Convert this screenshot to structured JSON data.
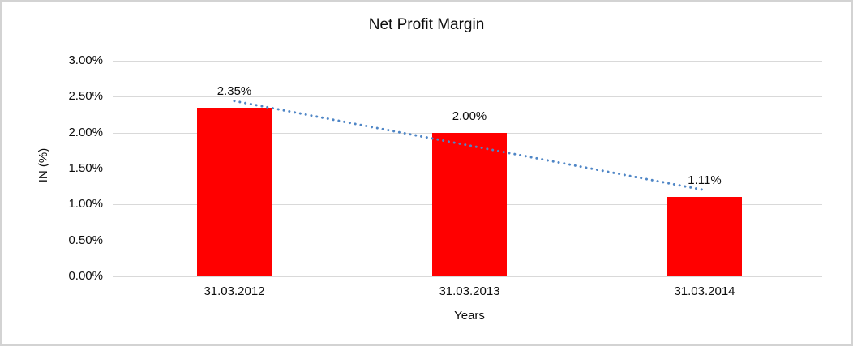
{
  "page": {
    "background_color": "#ffffff",
    "border_color": "#d3d3d3"
  },
  "chart_data": {
    "type": "bar",
    "title": "Net Profit Margin",
    "categories": [
      "31.03.2012",
      "31.03.2013",
      "31.03.2014"
    ],
    "values": [
      2.35,
      2.0,
      1.11
    ],
    "data_labels": [
      "2.35%",
      "2.00%",
      "1.11%"
    ],
    "xlabel": "Years",
    "ylabel": "IN (%)",
    "ylim": [
      0,
      3
    ],
    "ytick_step": 0.5,
    "ytick_labels": [
      "0.00%",
      "0.50%",
      "1.00%",
      "1.50%",
      "2.00%",
      "2.50%",
      "3.00%"
    ],
    "grid": true,
    "legend": "none",
    "bar_color": "#ff0000",
    "gridline_color": "#d9d9d9",
    "text_color": "#0d0d0d",
    "trendline": {
      "type": "linear",
      "style": "dotted",
      "color": "#4f86c6",
      "start_value": 2.44,
      "end_value": 1.2
    }
  }
}
